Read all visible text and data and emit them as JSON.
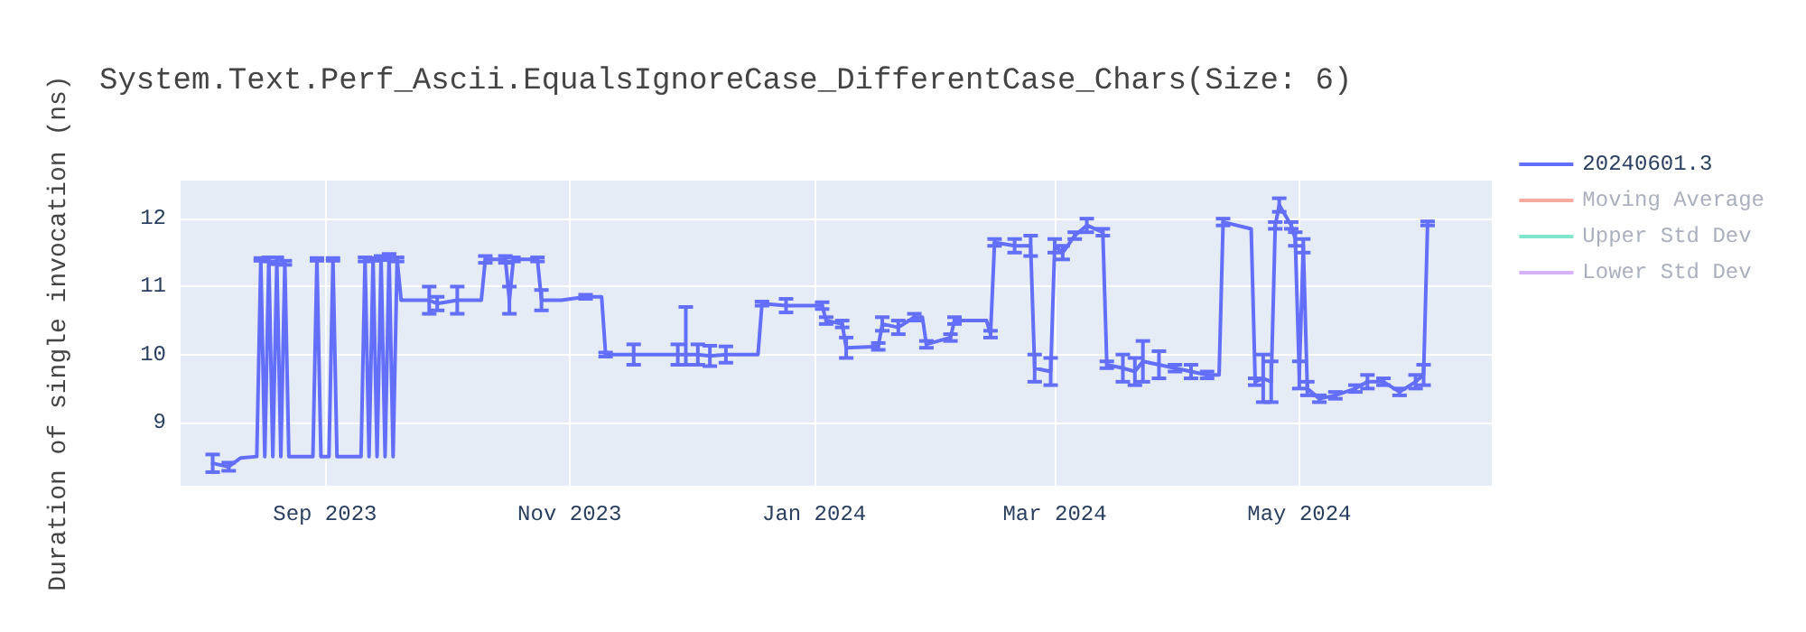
{
  "chart_data": {
    "type": "line",
    "title": "System.Text.Perf_Ascii.EqualsIgnoreCase_DifferentCase_Chars(Size: 6)",
    "ylabel": "Duration of single invocation (ns)",
    "xlim": [
      "2023-07-27",
      "2024-06-18"
    ],
    "xticks": [
      {
        "value": "2023-09-01",
        "label": "Sep 2023"
      },
      {
        "value": "2023-11-01",
        "label": "Nov 2023"
      },
      {
        "value": "2024-01-01",
        "label": "Jan 2024"
      },
      {
        "value": "2024-03-01",
        "label": "Mar 2024"
      },
      {
        "value": "2024-05-01",
        "label": "May 2024"
      }
    ],
    "ylim": [
      8.07,
      12.56
    ],
    "yticks": [
      9,
      10,
      11,
      12
    ],
    "grid": true,
    "legend": "top right",
    "marker": "none",
    "line_style": "solid",
    "series": [
      {
        "name": "20240601.3",
        "color": "#636efa",
        "x": [
          "2023-08-04",
          "2023-08-08",
          "2023-08-11",
          "2023-08-15",
          "2023-08-16",
          "2023-08-17",
          "2023-08-18",
          "2023-08-19",
          "2023-08-20",
          "2023-08-21",
          "2023-08-22",
          "2023-08-23",
          "2023-08-29",
          "2023-08-30",
          "2023-08-31",
          "2023-09-02",
          "2023-09-03",
          "2023-09-04",
          "2023-09-10",
          "2023-09-11",
          "2023-09-12",
          "2023-09-13",
          "2023-09-14",
          "2023-09-15",
          "2023-09-16",
          "2023-09-17",
          "2023-09-18",
          "2023-09-19",
          "2023-09-20",
          "2023-09-27",
          "2023-09-29",
          "2023-10-04",
          "2023-10-10",
          "2023-10-11",
          "2023-10-16",
          "2023-10-17",
          "2023-10-18",
          "2023-10-24",
          "2023-10-25",
          "2023-10-30",
          "2023-11-05",
          "2023-11-09",
          "2023-11-10",
          "2023-11-17",
          "2023-11-28",
          "2023-11-30",
          "2023-12-03",
          "2023-12-06",
          "2023-12-10",
          "2023-12-18",
          "2023-12-19",
          "2023-12-25",
          "2024-01-03",
          "2024-01-04",
          "2024-01-08",
          "2024-01-09",
          "2024-01-17",
          "2024-01-18",
          "2024-01-22",
          "2024-01-26",
          "2024-01-28",
          "2024-01-29",
          "2024-02-04",
          "2024-02-05",
          "2024-02-13",
          "2024-02-14",
          "2024-02-15",
          "2024-02-20",
          "2024-02-24",
          "2024-02-25",
          "2024-02-29",
          "2024-03-01",
          "2024-03-03",
          "2024-03-06",
          "2024-03-09",
          "2024-03-13",
          "2024-03-14",
          "2024-03-18",
          "2024-03-21",
          "2024-03-23",
          "2024-03-27",
          "2024-03-31",
          "2024-04-04",
          "2024-04-08",
          "2024-04-11",
          "2024-04-12",
          "2024-04-19",
          "2024-04-20",
          "2024-04-22",
          "2024-04-24",
          "2024-04-25",
          "2024-04-26",
          "2024-04-29",
          "2024-04-30",
          "2024-05-01",
          "2024-05-02",
          "2024-05-03",
          "2024-05-06",
          "2024-05-10",
          "2024-05-15",
          "2024-05-18",
          "2024-05-22",
          "2024-05-26",
          "2024-05-30",
          "2024-06-01",
          "2024-06-02"
        ],
        "values": [
          8.4,
          8.35,
          8.48,
          8.5,
          11.4,
          8.5,
          11.4,
          8.5,
          11.38,
          8.5,
          11.35,
          8.5,
          8.5,
          11.4,
          8.5,
          8.5,
          11.4,
          8.5,
          8.5,
          11.4,
          8.5,
          11.4,
          8.5,
          11.42,
          8.5,
          11.45,
          8.5,
          11.4,
          10.8,
          10.8,
          10.75,
          10.8,
          10.8,
          11.4,
          11.4,
          10.8,
          11.4,
          11.4,
          10.8,
          10.8,
          10.85,
          10.85,
          10.0,
          10.0,
          10.0,
          10.0,
          10.0,
          9.98,
          10.0,
          10.0,
          10.75,
          10.72,
          10.72,
          10.5,
          10.45,
          10.1,
          10.12,
          10.45,
          10.4,
          10.55,
          10.55,
          10.15,
          10.25,
          10.5,
          10.5,
          10.3,
          11.65,
          11.6,
          11.6,
          9.8,
          9.75,
          11.6,
          11.5,
          11.75,
          11.9,
          11.8,
          9.85,
          9.8,
          9.75,
          9.9,
          9.85,
          9.8,
          9.75,
          9.7,
          9.7,
          11.95,
          11.85,
          9.6,
          9.65,
          9.6,
          11.9,
          12.2,
          11.9,
          11.7,
          9.7,
          11.6,
          9.5,
          9.35,
          9.4,
          9.5,
          9.6,
          9.6,
          9.45,
          9.6,
          9.7,
          11.93
        ],
        "errors": [
          0.13,
          0.06,
          null,
          null,
          0.02,
          null,
          0.03,
          null,
          0.05,
          null,
          0.03,
          null,
          null,
          0.02,
          null,
          null,
          0.02,
          null,
          null,
          0.03,
          null,
          0.02,
          null,
          0.03,
          null,
          0.03,
          null,
          0.03,
          null,
          0.2,
          0.1,
          0.2,
          null,
          0.05,
          0.05,
          0.2,
          0.03,
          0.03,
          0.15,
          null,
          0.03,
          null,
          0.03,
          0.15,
          0.15,
          [
            9.85,
            10.7
          ],
          0.15,
          0.15,
          0.12,
          null,
          0.03,
          0.1,
          0.05,
          0.05,
          0.05,
          0.15,
          0.05,
          0.1,
          0.1,
          0.05,
          null,
          0.05,
          0.05,
          0.05,
          null,
          0.05,
          0.05,
          0.1,
          0.15,
          0.2,
          0.2,
          0.1,
          0.1,
          0.05,
          0.1,
          0.05,
          0.05,
          0.2,
          0.2,
          0.3,
          0.2,
          0.05,
          0.1,
          0.05,
          null,
          0.05,
          null,
          0.05,
          0.35,
          0.3,
          0.05,
          0.1,
          0.05,
          0.1,
          0.2,
          0.1,
          0.1,
          0.05,
          0.05,
          0.05,
          0.1,
          0.05,
          0.05,
          0.1,
          0.15,
          0.03
        ]
      },
      {
        "name": "Moving Average",
        "color": "#f7aa9d"
      },
      {
        "name": "Upper Std Dev",
        "color": "#80e5cb"
      },
      {
        "name": "Lower Std Dev",
        "color": "#d5b1fc"
      }
    ]
  }
}
